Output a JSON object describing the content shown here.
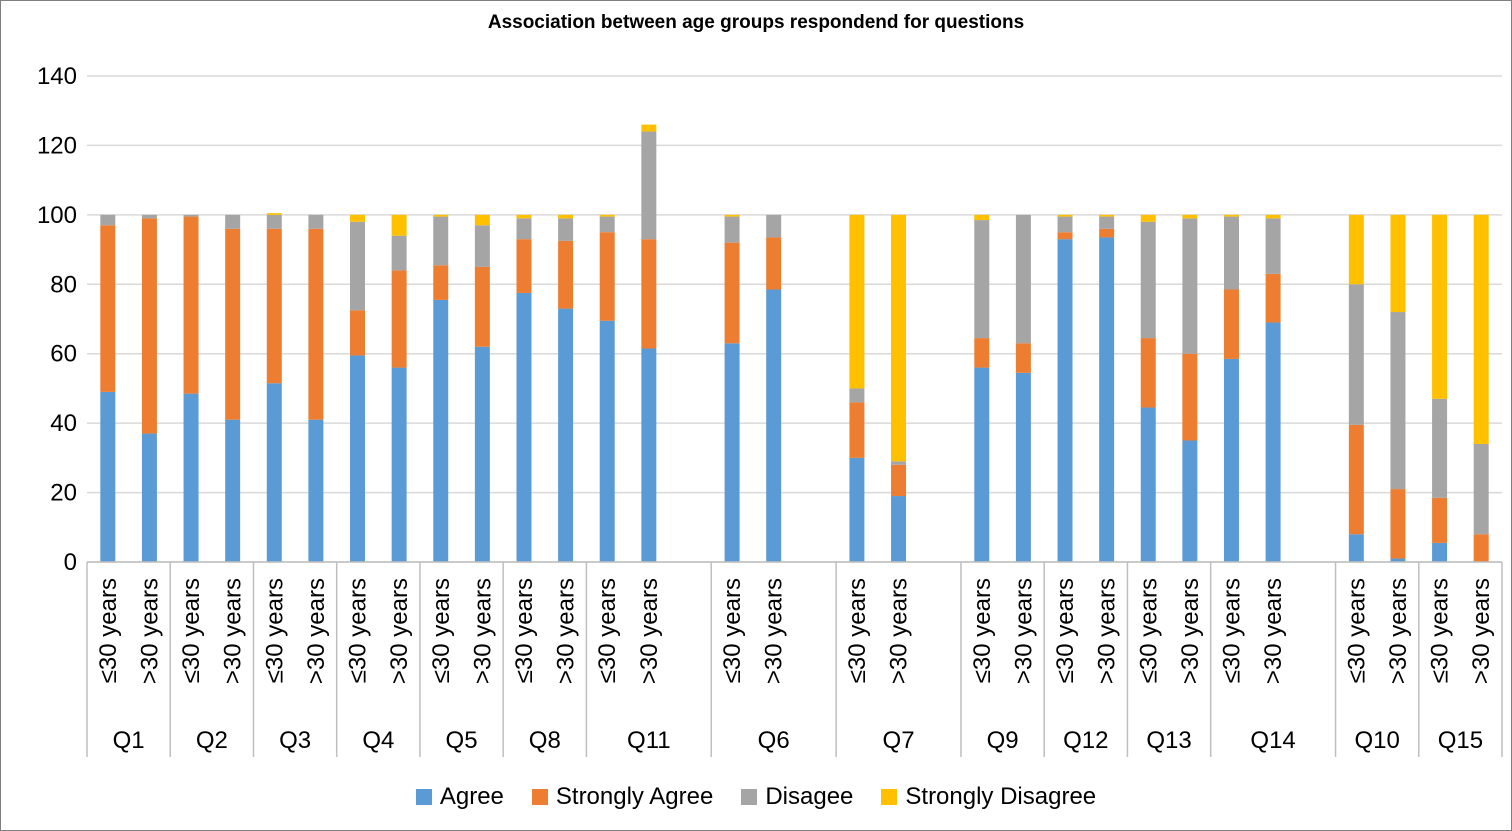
{
  "chart_data": {
    "type": "bar",
    "stacked": true,
    "title": "Association between age groups respondend for questions",
    "xlabel": "",
    "ylabel": "",
    "ylim": [
      0,
      140
    ],
    "yticks": [
      0,
      20,
      40,
      60,
      80,
      100,
      120,
      140
    ],
    "grid": true,
    "legend_position": "bottom",
    "groups": [
      {
        "label": "Q1",
        "categories": [
          "≤30 years",
          ">30 years"
        ]
      },
      {
        "label": "Q2",
        "categories": [
          "≤30 years",
          ">30 years"
        ]
      },
      {
        "label": "Q3",
        "categories": [
          "≤30 years",
          ">30 years"
        ]
      },
      {
        "label": "Q4",
        "categories": [
          "≤30 years",
          ">30 years"
        ]
      },
      {
        "label": "Q5",
        "categories": [
          "≤30 years",
          ">30 years"
        ]
      },
      {
        "label": "Q8",
        "categories": [
          "≤30 years",
          ">30 years"
        ]
      },
      {
        "label": "Q11",
        "categories": [
          "≤30 years",
          ">30 years"
        ]
      },
      {
        "label": "Q6",
        "categories": [
          "≤30 years",
          ">30 years"
        ]
      },
      {
        "label": "Q7",
        "categories": [
          "≤30 years",
          ">30 years"
        ]
      },
      {
        "label": "Q9",
        "categories": [
          "≤30 years",
          ">30 years"
        ]
      },
      {
        "label": "Q12",
        "categories": [
          "≤30 years",
          ">30 years"
        ]
      },
      {
        "label": "Q13",
        "categories": [
          "≤30 years",
          ">30 years"
        ]
      },
      {
        "label": "Q14",
        "categories": [
          "≤30 years",
          ">30 years"
        ]
      },
      {
        "label": "Q10",
        "categories": [
          "≤30 years",
          ">30 years"
        ]
      },
      {
        "label": "Q15",
        "categories": [
          "≤30 years",
          ">30 years"
        ]
      }
    ],
    "series": [
      {
        "name": "Agree",
        "color": "#5b9bd5",
        "values": [
          49,
          37,
          48.5,
          41,
          51.5,
          41,
          59.5,
          56,
          75.5,
          62,
          77.5,
          73,
          69.5,
          61.5,
          63,
          78.5,
          30,
          19,
          56,
          54.5,
          93,
          93.5,
          44.5,
          35,
          58.5,
          69,
          8,
          1,
          5.5,
          0
        ]
      },
      {
        "name": "Strongly Agree",
        "color": "#ed7d31",
        "values": [
          48,
          62,
          51,
          55,
          44.5,
          55,
          13,
          28,
          10,
          23,
          15.5,
          19.5,
          25.5,
          31.5,
          29,
          15,
          16,
          9,
          8.5,
          8.5,
          2,
          2.5,
          20,
          25,
          20,
          14,
          31.5,
          20,
          13,
          8
        ]
      },
      {
        "name": "Disagee",
        "color": "#a5a5a5",
        "values": [
          3,
          1,
          0.5,
          4,
          4,
          4,
          25.5,
          10,
          14,
          12,
          6,
          6.5,
          4.5,
          31,
          7.5,
          6.5,
          4,
          1,
          34,
          37,
          4.5,
          3.5,
          33.5,
          39,
          21,
          16,
          40.5,
          51,
          28.5,
          26
        ]
      },
      {
        "name": "Strongly Disagree",
        "color": "#ffc000",
        "values": [
          0,
          0,
          0,
          0,
          0.5,
          0,
          2,
          6,
          0.5,
          3,
          1,
          1,
          0.5,
          2,
          0.5,
          0,
          50,
          71,
          1.5,
          0,
          0.5,
          0.5,
          2,
          1,
          0.5,
          1,
          20,
          28,
          53,
          66
        ]
      }
    ]
  }
}
